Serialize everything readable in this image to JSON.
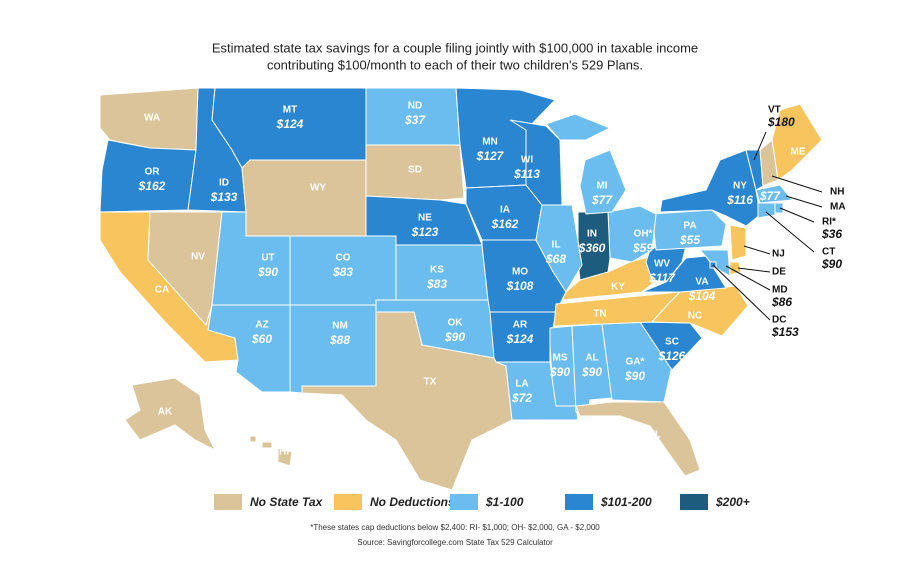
{
  "title": [
    "Estimated state tax savings for a couple filing jointly with $100,000 in taxable income",
    "contributing $100/month to each of their two children's 529 Plans."
  ],
  "legend": [
    {
      "label": "No State Tax",
      "color": "#dcc49a"
    },
    {
      "label": "No Deductions",
      "color": "#f8c45e"
    },
    {
      "label": "$1-100",
      "color": "#6cbdef"
    },
    {
      "label": "$101-200",
      "color": "#2a86d1"
    },
    {
      "label": "$200+",
      "color": "#1e5c7e"
    }
  ],
  "states": [
    {
      "abbr": "WA",
      "category": 0
    },
    {
      "abbr": "OR",
      "value": "$162",
      "category": 3
    },
    {
      "abbr": "CA",
      "category": 1
    },
    {
      "abbr": "NV",
      "category": 0
    },
    {
      "abbr": "ID",
      "value": "$133",
      "category": 3
    },
    {
      "abbr": "MT",
      "value": "$124",
      "category": 3
    },
    {
      "abbr": "WY",
      "category": 0
    },
    {
      "abbr": "UT",
      "value": "$90",
      "category": 2
    },
    {
      "abbr": "CO",
      "value": "$83",
      "category": 2
    },
    {
      "abbr": "AZ",
      "value": "$60",
      "category": 2
    },
    {
      "abbr": "NM",
      "value": "$88",
      "category": 2
    },
    {
      "abbr": "ND",
      "value": "$37",
      "category": 2
    },
    {
      "abbr": "SD",
      "category": 0
    },
    {
      "abbr": "NE",
      "value": "$123",
      "category": 3
    },
    {
      "abbr": "KS",
      "value": "$83",
      "category": 2
    },
    {
      "abbr": "OK",
      "value": "$90",
      "category": 2
    },
    {
      "abbr": "TX",
      "category": 0
    },
    {
      "abbr": "MN",
      "value": "$127",
      "category": 3
    },
    {
      "abbr": "IA",
      "value": "$162",
      "category": 3
    },
    {
      "abbr": "MO",
      "value": "$108",
      "category": 3
    },
    {
      "abbr": "AR",
      "value": "$124",
      "category": 3
    },
    {
      "abbr": "LA",
      "value": "$72",
      "category": 2
    },
    {
      "abbr": "MS",
      "value": "$90",
      "category": 2
    },
    {
      "abbr": "AL",
      "value": "$90",
      "category": 2
    },
    {
      "abbr": "GA*",
      "value": "$90",
      "category": 2
    },
    {
      "abbr": "FL",
      "category": 0
    },
    {
      "abbr": "SC",
      "value": "$126",
      "category": 3
    },
    {
      "abbr": "NC",
      "category": 1
    },
    {
      "abbr": "TN",
      "category": 1
    },
    {
      "abbr": "KY",
      "category": 1
    },
    {
      "abbr": "WV",
      "value": "$117",
      "category": 3
    },
    {
      "abbr": "VA",
      "value": "$104",
      "category": 3
    },
    {
      "abbr": "PA",
      "value": "$55",
      "category": 2
    },
    {
      "abbr": "OH*",
      "value": "$59",
      "category": 2
    },
    {
      "abbr": "IN",
      "value": "$360",
      "category": 4
    },
    {
      "abbr": "IL",
      "value": "$68",
      "category": 2
    },
    {
      "abbr": "MI",
      "value": "$77",
      "category": 2
    },
    {
      "abbr": "WI",
      "value": "$113",
      "category": 3
    },
    {
      "abbr": "NY",
      "value": "$116",
      "category": 3
    },
    {
      "abbr": "ME",
      "category": 1
    },
    {
      "abbr": "AK",
      "category": 0
    },
    {
      "abbr": "HI",
      "category": 0
    },
    {
      "abbr": "VT",
      "value": "$180",
      "category": 3
    },
    {
      "abbr": "NH",
      "category": 0
    },
    {
      "abbr": "MA",
      "value": "$77",
      "category": 2
    },
    {
      "abbr": "RI*",
      "value": "$36",
      "category": 2
    },
    {
      "abbr": "CT",
      "value": "$90",
      "category": 2
    },
    {
      "abbr": "NJ",
      "category": 1
    },
    {
      "abbr": "DE",
      "category": 1
    },
    {
      "abbr": "MD",
      "value": "$86",
      "category": 2
    },
    {
      "abbr": "DC",
      "value": "$153",
      "category": 3
    }
  ],
  "footnote": "*These states cap deductions below $2,400: RI- $1,000; OH- $2,000, GA - $2,000",
  "source": "Source: Savingforcollege.com State Tax 529 Calculator"
}
